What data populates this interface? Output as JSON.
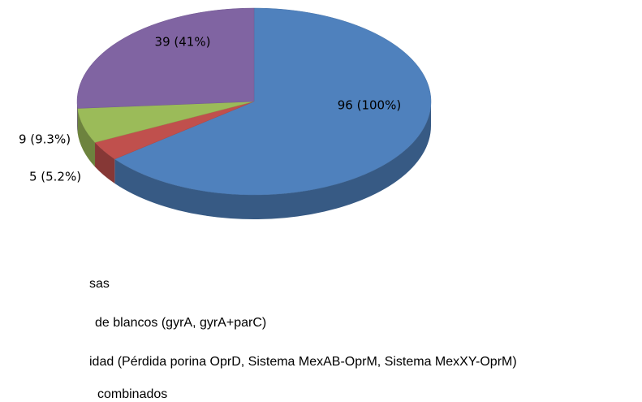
{
  "chart_data": {
    "type": "pie",
    "categories": [
      "sas",
      "de blancos (gyrA, gyrA+parC)",
      "idad (Pérdida porina OprD, Sistema MexAB-OprM, Sistema MexXY-OprM)",
      "combinados"
    ],
    "values": [
      96,
      5,
      9,
      39
    ],
    "value_labels": [
      "96 (100%)",
      "5 (5.2%)",
      "9 (9.3%)",
      "39 (41%)"
    ],
    "colors": [
      "#4f81bd",
      "#c0504d",
      "#9bbb59",
      "#8064a2"
    ]
  }
}
